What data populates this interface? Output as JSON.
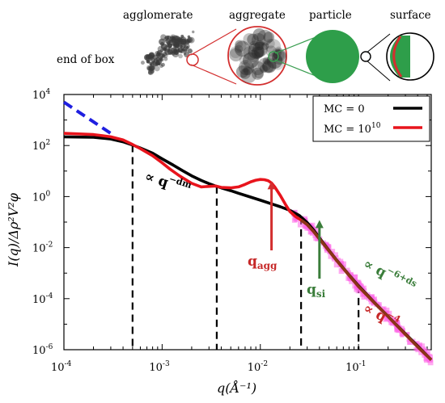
{
  "diagram": {
    "labels": [
      "agglomerate",
      "aggregate",
      "particle",
      "surface"
    ],
    "left_label": "end of box"
  },
  "chart_data": {
    "type": "line",
    "x_scale": "log",
    "y_scale": "log",
    "xlim": [
      0.0001,
      0.55
    ],
    "ylim": [
      1e-06,
      10000
    ],
    "x_tick_labels": [
      {
        "base": "10",
        "exp": "-4",
        "value": 0.0001
      },
      {
        "base": "10",
        "exp": "-3",
        "value": 0.001
      },
      {
        "base": "10",
        "exp": "-2",
        "value": 0.01
      },
      {
        "base": "10",
        "exp": "-1",
        "value": 0.1
      }
    ],
    "y_tick_labels": [
      {
        "base": "10",
        "exp": "4",
        "value": 10000
      },
      {
        "base": "10",
        "exp": "2",
        "value": 100
      },
      {
        "base": "10",
        "exp": "0",
        "value": 1
      },
      {
        "base": "10",
        "exp": "-2",
        "value": 0.01
      },
      {
        "base": "10",
        "exp": "-4",
        "value": 0.0001
      },
      {
        "base": "10",
        "exp": "-6",
        "value": 1e-06
      }
    ],
    "xlabel": "q(Å⁻¹)",
    "ylabel": "I(q)/Δρ²V²φ",
    "legend": {
      "placement": "top-right",
      "entries": [
        {
          "label": "MC = 0",
          "color": "#000000"
        },
        {
          "label": "MC = 10",
          "exp": "10",
          "color": "#e8141c"
        }
      ]
    },
    "series": [
      {
        "name": "MC = 0",
        "color": "#000000",
        "x": [
          0.0001,
          0.0002,
          0.0003,
          0.0004,
          0.0005,
          0.0006,
          0.0008,
          0.001,
          0.0013,
          0.0016,
          0.002,
          0.0025,
          0.003,
          0.0035,
          0.004,
          0.005,
          0.006,
          0.008,
          0.01,
          0.013,
          0.016,
          0.02,
          0.025,
          0.03,
          0.035,
          0.04,
          0.05,
          0.06,
          0.08,
          0.1,
          0.15,
          0.2,
          0.3,
          0.4,
          0.55
        ],
        "y": [
          220,
          210,
          180,
          140,
          105,
          80,
          50,
          30,
          17,
          10.5,
          6.5,
          4.3,
          3.2,
          2.6,
          2.2,
          1.7,
          1.35,
          0.95,
          0.72,
          0.52,
          0.4,
          0.29,
          0.18,
          0.095,
          0.048,
          0.024,
          0.0078,
          0.0032,
          0.00085,
          0.00032,
          6.2e-05,
          2e-05,
          4.2e-06,
          1.4e-06,
          4e-07
        ]
      },
      {
        "name": "MC = 10^10",
        "color": "#e8141c",
        "x": [
          0.0001,
          0.0002,
          0.0003,
          0.0004,
          0.0005,
          0.0006,
          0.0008,
          0.001,
          0.0012,
          0.0015,
          0.002,
          0.0025,
          0.003,
          0.0035,
          0.004,
          0.005,
          0.006,
          0.007,
          0.008,
          0.009,
          0.01,
          0.011,
          0.012,
          0.013,
          0.014,
          0.016,
          0.018,
          0.02,
          0.023,
          0.026,
          0.03,
          0.035,
          0.04,
          0.05,
          0.06,
          0.08,
          0.1,
          0.15,
          0.2,
          0.3,
          0.4,
          0.55
        ],
        "y": [
          300,
          270,
          220,
          165,
          110,
          75,
          40,
          21,
          12,
          6.5,
          3.3,
          2.4,
          2.5,
          2.6,
          2.3,
          2.2,
          2.4,
          3,
          3.8,
          4.4,
          4.7,
          4.6,
          4.2,
          3.4,
          2.4,
          1.1,
          0.5,
          0.26,
          0.16,
          0.12,
          0.08,
          0.042,
          0.022,
          0.0075,
          0.0031,
          0.00082,
          0.0003,
          6e-05,
          2e-05,
          4e-06,
          1.3e-06,
          4e-07
        ]
      }
    ],
    "dashed_extrapolation": {
      "color": "#1f1fe0",
      "x": [
        0.0001,
        0.0003
      ],
      "y": [
        5000,
        300
      ]
    },
    "vertical_markers": [
      0.0005,
      0.0036,
      0.026,
      0.1
    ],
    "annotations": [
      {
        "id": "dm",
        "text": "∝ q",
        "exp": "−dm",
        "color": "#000000",
        "angle": 18
      },
      {
        "id": "qagg",
        "text": "q",
        "sub": "agg",
        "color": "#c62828",
        "arrow_to": [
          0.013,
          5
        ]
      },
      {
        "id": "qsi",
        "text": "q",
        "sub": "si",
        "color": "#3a7d3a",
        "arrow_to": [
          0.04,
          0.15
        ]
      },
      {
        "id": "ds",
        "text": "∝ q",
        "exp": "−6+ds",
        "color": "#3a7d3a",
        "angle": 28
      },
      {
        "id": "q4",
        "text": "∝ q",
        "exp": "−4",
        "color": "#c62828",
        "angle": 28
      }
    ]
  }
}
